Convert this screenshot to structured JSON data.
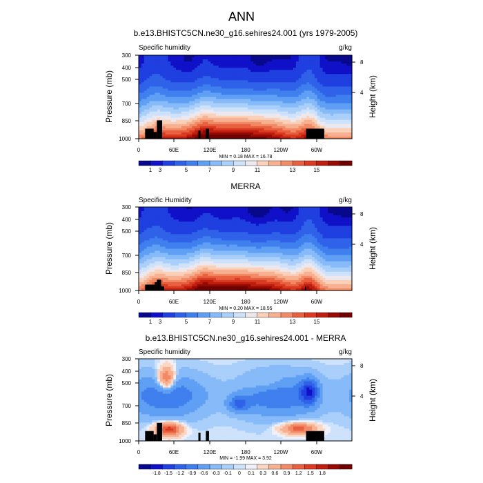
{
  "figure_title": "ANN",
  "colormap_main": [
    "#08088c",
    "#1010c8",
    "#1f3fe0",
    "#2f62e8",
    "#3f7fee",
    "#5f9ff4",
    "#86baf8",
    "#a9cffa",
    "#cfe2fc",
    "#ece8ee",
    "#fbd0b8",
    "#f7b090",
    "#f28a66",
    "#e8603f",
    "#d93a22",
    "#bf1e0e",
    "#960a04",
    "#6e0000"
  ],
  "colormap_diff": [
    "#08088c",
    "#1010c8",
    "#1f3fe0",
    "#2f62e8",
    "#3f7fee",
    "#5f9ff4",
    "#86baf8",
    "#a9cffa",
    "#cfe2fc",
    "#f0f0f8",
    "#fbd6c2",
    "#f7b090",
    "#f28a66",
    "#e8603f",
    "#d93a22",
    "#bf1e0e",
    "#960a04",
    "#6e0000"
  ],
  "chart_data": [
    {
      "type": "heatmap",
      "title": "b.e13.BHISTC5CN.ne30_g16.sehires24.001 (yrs 1979-2005)",
      "left_label": "Specific humidity",
      "right_label": "g/kg",
      "ylabel": "Pressure (mb)",
      "y2label": "Height (km)",
      "xlabel": "",
      "y_ticks": [
        "300",
        "400",
        "500",
        "700",
        "850",
        "1000"
      ],
      "y2_ticks": [
        "8",
        "4"
      ],
      "x_ticks": [
        "0",
        "60E",
        "120E",
        "180",
        "120W",
        "60W"
      ],
      "stats": "MIN =   0.18  MAX =  16.78",
      "colorbar_labels": [
        "1",
        "3",
        "5",
        "7",
        "9",
        "11",
        "13",
        "15"
      ],
      "value_range": [
        0,
        17
      ],
      "note": ""
    },
    {
      "type": "heatmap",
      "title": "MERRA",
      "left_label": "Specific Humidity",
      "right_label": "g/kg",
      "ylabel": "Pressure (mb)",
      "y2label": "Height (km)",
      "xlabel": "",
      "y_ticks": [
        "300",
        "400",
        "500",
        "700",
        "850",
        "1000"
      ],
      "y2_ticks": [
        "8",
        "4"
      ],
      "x_ticks": [
        "0",
        "60E",
        "120E",
        "180",
        "120W",
        "60W"
      ],
      "stats": "MIN =   0.20  MAX =  18.55",
      "colorbar_labels": [
        "1",
        "3",
        "5",
        "7",
        "9",
        "11",
        "13",
        "15"
      ],
      "value_range": [
        0,
        17
      ],
      "note": ""
    },
    {
      "type": "heatmap",
      "title": "b.e13.BHISTC5CN.ne30_g16.sehires24.001 - MERRA",
      "left_label": "Specific humidity",
      "right_label": "g/kg",
      "ylabel": "Pressure (mb)",
      "y2label": "Height (km)",
      "xlabel": "",
      "y_ticks": [
        "300",
        "400",
        "500",
        "700",
        "850",
        "1000"
      ],
      "y2_ticks": [
        "8",
        "4"
      ],
      "x_ticks": [
        "0",
        "60E",
        "120E",
        "180",
        "120W",
        "60W"
      ],
      "stats": "MIN =  -1.99  MAX =   3.92",
      "colorbar_labels": [
        "-1.8",
        "-1.5",
        "-1.2",
        "-0.9",
        "-0.6",
        "-0.3",
        "-0.1",
        "0",
        "0.1",
        "0.3",
        "0.6",
        "0.9",
        "1.2",
        "1.5",
        "1.8"
      ],
      "value_range": [
        -2,
        2
      ],
      "note": ""
    }
  ]
}
